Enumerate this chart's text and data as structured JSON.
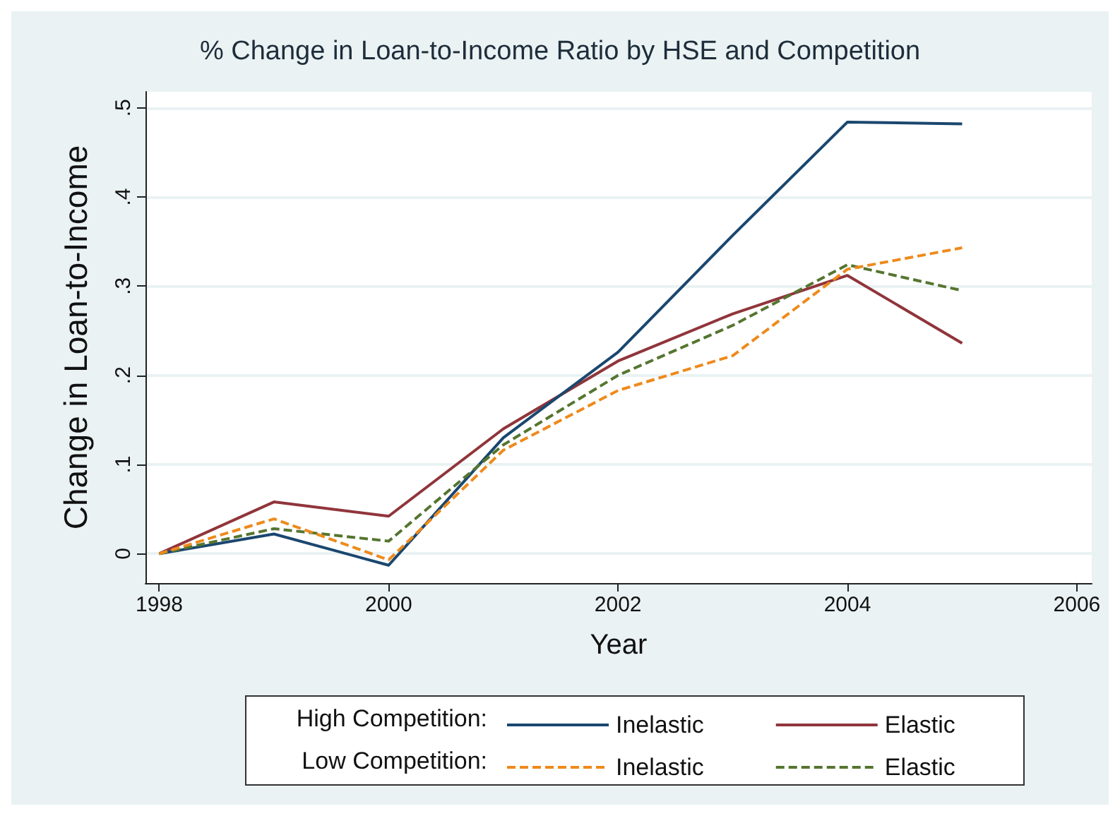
{
  "chart_data": {
    "type": "line",
    "title": "% Change in Loan-to-Income Ratio by HSE and Competition",
    "xlabel": "Year",
    "ylabel": "Change in Loan-to-Income",
    "x": [
      1998,
      1999,
      2000,
      2001,
      2002,
      2003,
      2004,
      2005
    ],
    "xlim": [
      1997.88,
      2006.13
    ],
    "xticks": [
      1998,
      2000,
      2002,
      2004,
      2006
    ],
    "ylim": [
      -0.033,
      0.518
    ],
    "yticks": [
      {
        "value": 0,
        "label": "0"
      },
      {
        "value": 0.1,
        "label": ".1"
      },
      {
        "value": 0.2,
        "label": ".2"
      },
      {
        "value": 0.3,
        "label": ".3"
      },
      {
        "value": 0.4,
        "label": ".4"
      },
      {
        "value": 0.5,
        "label": ".5"
      }
    ],
    "grid": "y",
    "legend": "bottom",
    "marker": "none",
    "annotations": [
      "High Competition:",
      "Low Competition:"
    ],
    "series": [
      {
        "name": "Inelastic",
        "color": "#1a476f",
        "line_style": "solid",
        "values": [
          0,
          0.022,
          -0.013,
          0.13,
          0.226,
          0.357,
          0.484,
          0.482
        ]
      },
      {
        "name": "Elastic",
        "color": "#90353b",
        "line_style": "solid",
        "values": [
          0,
          0.058,
          0.042,
          0.14,
          0.216,
          0.269,
          0.312,
          0.236
        ]
      },
      {
        "name": "Inelastic",
        "color": "#ee8a1c",
        "line_style": "dashed",
        "values": [
          0,
          0.039,
          -0.007,
          0.116,
          0.183,
          0.222,
          0.319,
          0.343
        ]
      },
      {
        "name": "Elastic",
        "color": "#55752f",
        "line_style": "dashed",
        "values": [
          0,
          0.028,
          0.014,
          0.122,
          0.2,
          0.256,
          0.324,
          0.295
        ]
      }
    ]
  }
}
